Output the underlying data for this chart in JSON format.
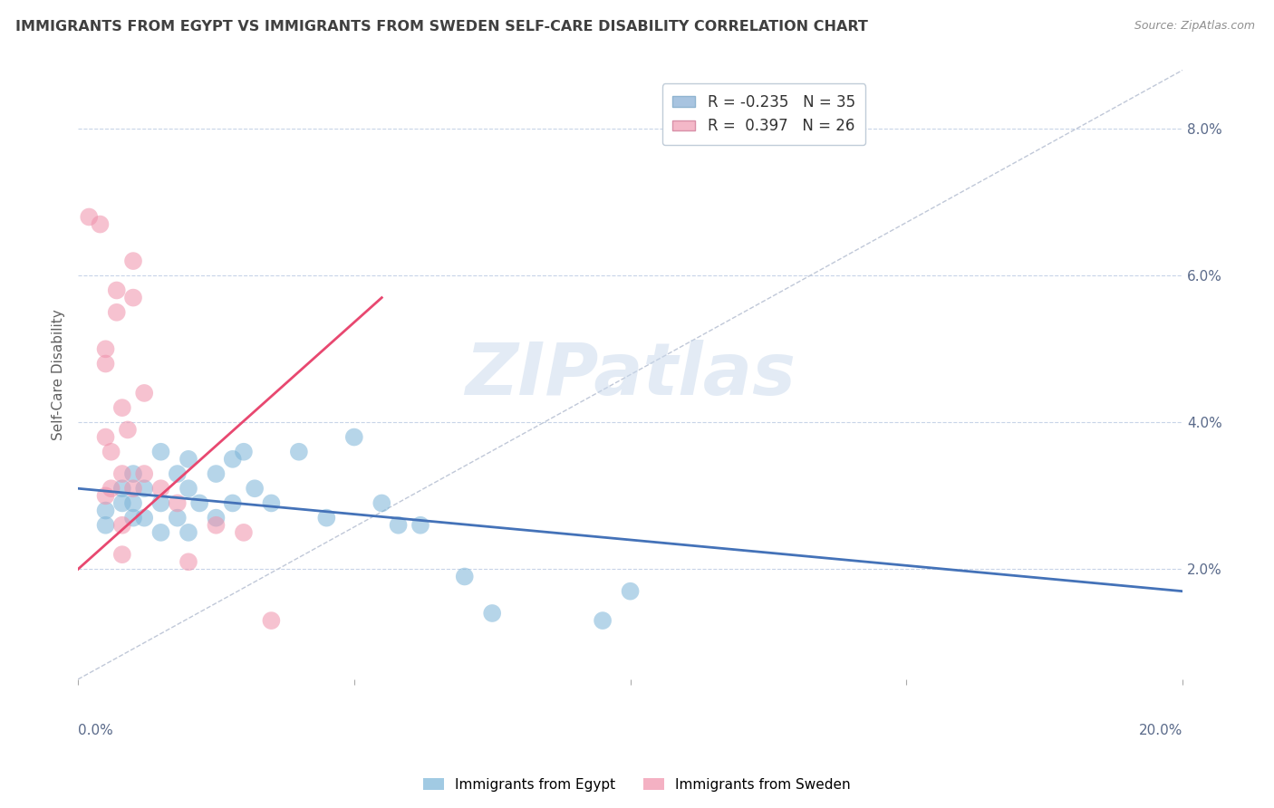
{
  "title": "IMMIGRANTS FROM EGYPT VS IMMIGRANTS FROM SWEDEN SELF-CARE DISABILITY CORRELATION CHART",
  "source_text": "Source: ZipAtlas.com",
  "ylabel": "Self-Care Disability",
  "ylabel_right_ticks": [
    "8.0%",
    "6.0%",
    "4.0%",
    "2.0%"
  ],
  "ylabel_right_vals": [
    0.08,
    0.06,
    0.04,
    0.02
  ],
  "xmin": 0.0,
  "xmax": 0.2,
  "ymin": 0.005,
  "ymax": 0.088,
  "legend_entries": [
    {
      "label_r": "R = -0.235",
      "label_n": "N = 35",
      "color": "#a8c4e0"
    },
    {
      "label_r": "R =  0.397",
      "label_n": "N = 26",
      "color": "#f4b8c8"
    }
  ],
  "watermark": "ZIPatlas",
  "egypt_color": "#7ab4d8",
  "sweden_color": "#f090aa",
  "egypt_scatter": [
    [
      0.005,
      0.028
    ],
    [
      0.005,
      0.026
    ],
    [
      0.008,
      0.031
    ],
    [
      0.008,
      0.029
    ],
    [
      0.01,
      0.033
    ],
    [
      0.01,
      0.029
    ],
    [
      0.01,
      0.027
    ],
    [
      0.012,
      0.031
    ],
    [
      0.012,
      0.027
    ],
    [
      0.015,
      0.036
    ],
    [
      0.015,
      0.029
    ],
    [
      0.015,
      0.025
    ],
    [
      0.018,
      0.033
    ],
    [
      0.018,
      0.027
    ],
    [
      0.02,
      0.035
    ],
    [
      0.02,
      0.031
    ],
    [
      0.02,
      0.025
    ],
    [
      0.022,
      0.029
    ],
    [
      0.025,
      0.033
    ],
    [
      0.025,
      0.027
    ],
    [
      0.028,
      0.035
    ],
    [
      0.028,
      0.029
    ],
    [
      0.03,
      0.036
    ],
    [
      0.032,
      0.031
    ],
    [
      0.035,
      0.029
    ],
    [
      0.04,
      0.036
    ],
    [
      0.045,
      0.027
    ],
    [
      0.05,
      0.038
    ],
    [
      0.055,
      0.029
    ],
    [
      0.058,
      0.026
    ],
    [
      0.062,
      0.026
    ],
    [
      0.07,
      0.019
    ],
    [
      0.075,
      0.014
    ],
    [
      0.095,
      0.013
    ],
    [
      0.1,
      0.017
    ]
  ],
  "sweden_scatter": [
    [
      0.002,
      0.068
    ],
    [
      0.004,
      0.067
    ],
    [
      0.005,
      0.05
    ],
    [
      0.005,
      0.048
    ],
    [
      0.005,
      0.038
    ],
    [
      0.005,
      0.03
    ],
    [
      0.006,
      0.036
    ],
    [
      0.006,
      0.031
    ],
    [
      0.007,
      0.058
    ],
    [
      0.007,
      0.055
    ],
    [
      0.008,
      0.042
    ],
    [
      0.008,
      0.033
    ],
    [
      0.008,
      0.026
    ],
    [
      0.008,
      0.022
    ],
    [
      0.009,
      0.039
    ],
    [
      0.01,
      0.062
    ],
    [
      0.01,
      0.057
    ],
    [
      0.01,
      0.031
    ],
    [
      0.012,
      0.044
    ],
    [
      0.012,
      0.033
    ],
    [
      0.015,
      0.031
    ],
    [
      0.018,
      0.029
    ],
    [
      0.02,
      0.021
    ],
    [
      0.025,
      0.026
    ],
    [
      0.03,
      0.025
    ],
    [
      0.035,
      0.013
    ]
  ],
  "egypt_trendline": [
    [
      0.0,
      0.031
    ],
    [
      0.2,
      0.017
    ]
  ],
  "sweden_trendline": [
    [
      0.0,
      0.02
    ],
    [
      0.055,
      0.057
    ]
  ],
  "ref_line": [
    [
      0.0,
      0.005
    ],
    [
      0.2,
      0.088
    ]
  ],
  "background_color": "#ffffff",
  "grid_color": "#c8d4e8",
  "title_color": "#404040",
  "source_color": "#909090"
}
